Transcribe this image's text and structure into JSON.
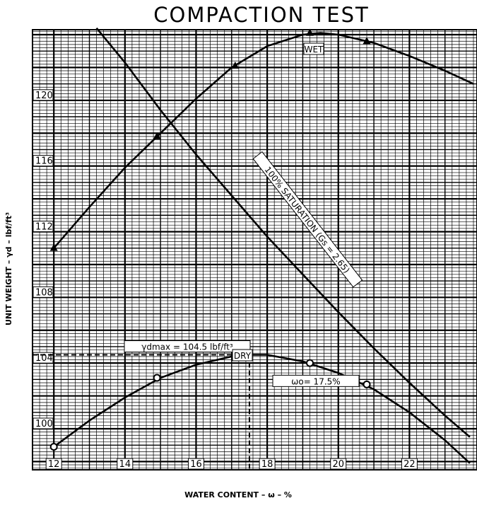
{
  "chart_data": {
    "type": "line",
    "title": "COMPACTION TEST",
    "xlabel": "WATER CONTENT  –  ω  –  %",
    "ylabel": "UNIT WEIGHT  –  γd  –  lbf/ft³",
    "xlim": [
      11.4,
      23.9
    ],
    "ylim": [
      97.5,
      124.3
    ],
    "x_ticks": [
      12,
      14,
      16,
      18,
      20,
      22
    ],
    "y_ticks": [
      100,
      104,
      108,
      112,
      116,
      120
    ],
    "grid": true,
    "series": [
      {
        "name": "DRY",
        "marker": "circle",
        "points": [
          [
            12.0,
            98.9
          ],
          [
            14.9,
            103.1
          ],
          [
            17.1,
            104.4
          ],
          [
            19.2,
            104.0
          ],
          [
            20.8,
            102.7
          ]
        ],
        "curve": [
          [
            12.0,
            98.9
          ],
          [
            13.0,
            100.5
          ],
          [
            14.0,
            101.9
          ],
          [
            15.0,
            103.1
          ],
          [
            16.0,
            103.9
          ],
          [
            17.0,
            104.4
          ],
          [
            17.5,
            104.5
          ],
          [
            18.0,
            104.5
          ],
          [
            19.0,
            104.1
          ],
          [
            20.0,
            103.4
          ],
          [
            21.0,
            102.4
          ],
          [
            22.0,
            101.0
          ],
          [
            23.0,
            99.3
          ],
          [
            23.7,
            97.9
          ]
        ]
      },
      {
        "name": "WET",
        "marker": "triangle",
        "points": [
          [
            12.0,
            111.0
          ],
          [
            14.9,
            117.8
          ],
          [
            17.1,
            122.1
          ],
          [
            19.2,
            124.1
          ],
          [
            20.8,
            123.6
          ]
        ],
        "curve": [
          [
            12.0,
            111.0
          ],
          [
            13.0,
            113.5
          ],
          [
            14.0,
            115.9
          ],
          [
            15.0,
            118.0
          ],
          [
            16.0,
            120.1
          ],
          [
            17.0,
            122.0
          ],
          [
            18.0,
            123.3
          ],
          [
            19.0,
            124.0
          ],
          [
            19.5,
            124.1
          ],
          [
            20.0,
            124.0
          ],
          [
            21.0,
            123.5
          ],
          [
            22.0,
            122.7
          ],
          [
            23.0,
            121.8
          ],
          [
            23.8,
            121.0
          ]
        ]
      },
      {
        "name": "100% SATURATION (Gs = 2.65)",
        "marker": "none",
        "curve": [
          [
            13.2,
            124.4
          ],
          [
            14.0,
            122.3
          ],
          [
            15.0,
            119.4
          ],
          [
            16.0,
            116.7
          ],
          [
            17.0,
            114.2
          ],
          [
            18.0,
            111.7
          ],
          [
            19.0,
            109.4
          ],
          [
            20.0,
            107.1
          ],
          [
            21.0,
            104.9
          ],
          [
            22.0,
            102.8
          ],
          [
            23.0,
            100.8
          ],
          [
            23.7,
            99.5
          ]
        ]
      }
    ],
    "reference": {
      "ydmax": 104.5,
      "wopt": 17.5
    },
    "annotations": {
      "ydmax_label": "γdmax = 104.5 lbf/ft³",
      "wopt_label": "ωo= 17.5%",
      "wet_label": "WET",
      "dry_label": "DRY",
      "saturation_label": "100% SATURATION (Gs = 2.65)"
    }
  }
}
